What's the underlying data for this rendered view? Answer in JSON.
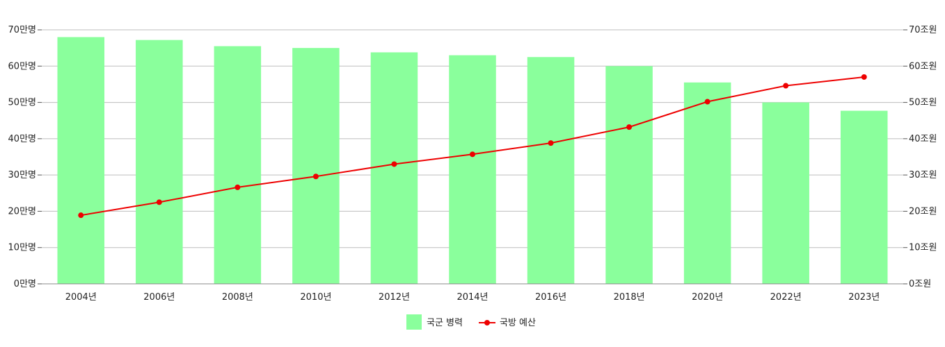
{
  "chart_data": {
    "type": "bar",
    "categories": [
      "2004년",
      "2006년",
      "2008년",
      "2010년",
      "2012년",
      "2014년",
      "2016년",
      "2018년",
      "2020년",
      "2022년",
      "2023년"
    ],
    "series": [
      {
        "name": "국군 병력",
        "type": "bar",
        "axis": "left",
        "color": "#8aff9c",
        "values": [
          68,
          67.2,
          65.5,
          65,
          63.8,
          63,
          62.5,
          60,
          55.5,
          50,
          47.7
        ]
      },
      {
        "name": "국방 예산",
        "type": "line",
        "axis": "right",
        "color": "#ee0000",
        "values": [
          18.9,
          22.5,
          26.6,
          29.6,
          33,
          35.7,
          38.8,
          43.2,
          50.2,
          54.6,
          57
        ]
      }
    ],
    "y_left": {
      "ylim": [
        0,
        70
      ],
      "ticks": [
        0,
        10,
        20,
        30,
        40,
        50,
        60,
        70
      ],
      "tick_labels": [
        "0만명",
        "10만명",
        "20만명",
        "30만명",
        "40만명",
        "50만명",
        "60만명",
        "70만명"
      ]
    },
    "y_right": {
      "ylim": [
        0,
        70
      ],
      "ticks": [
        0,
        10,
        20,
        30,
        40,
        50,
        60,
        70
      ],
      "tick_labels": [
        "0조원",
        "10조원",
        "20조원",
        "30조원",
        "40조원",
        "50조원",
        "60조원",
        "70조원"
      ]
    },
    "grid": true,
    "legend_position": "bottom"
  }
}
